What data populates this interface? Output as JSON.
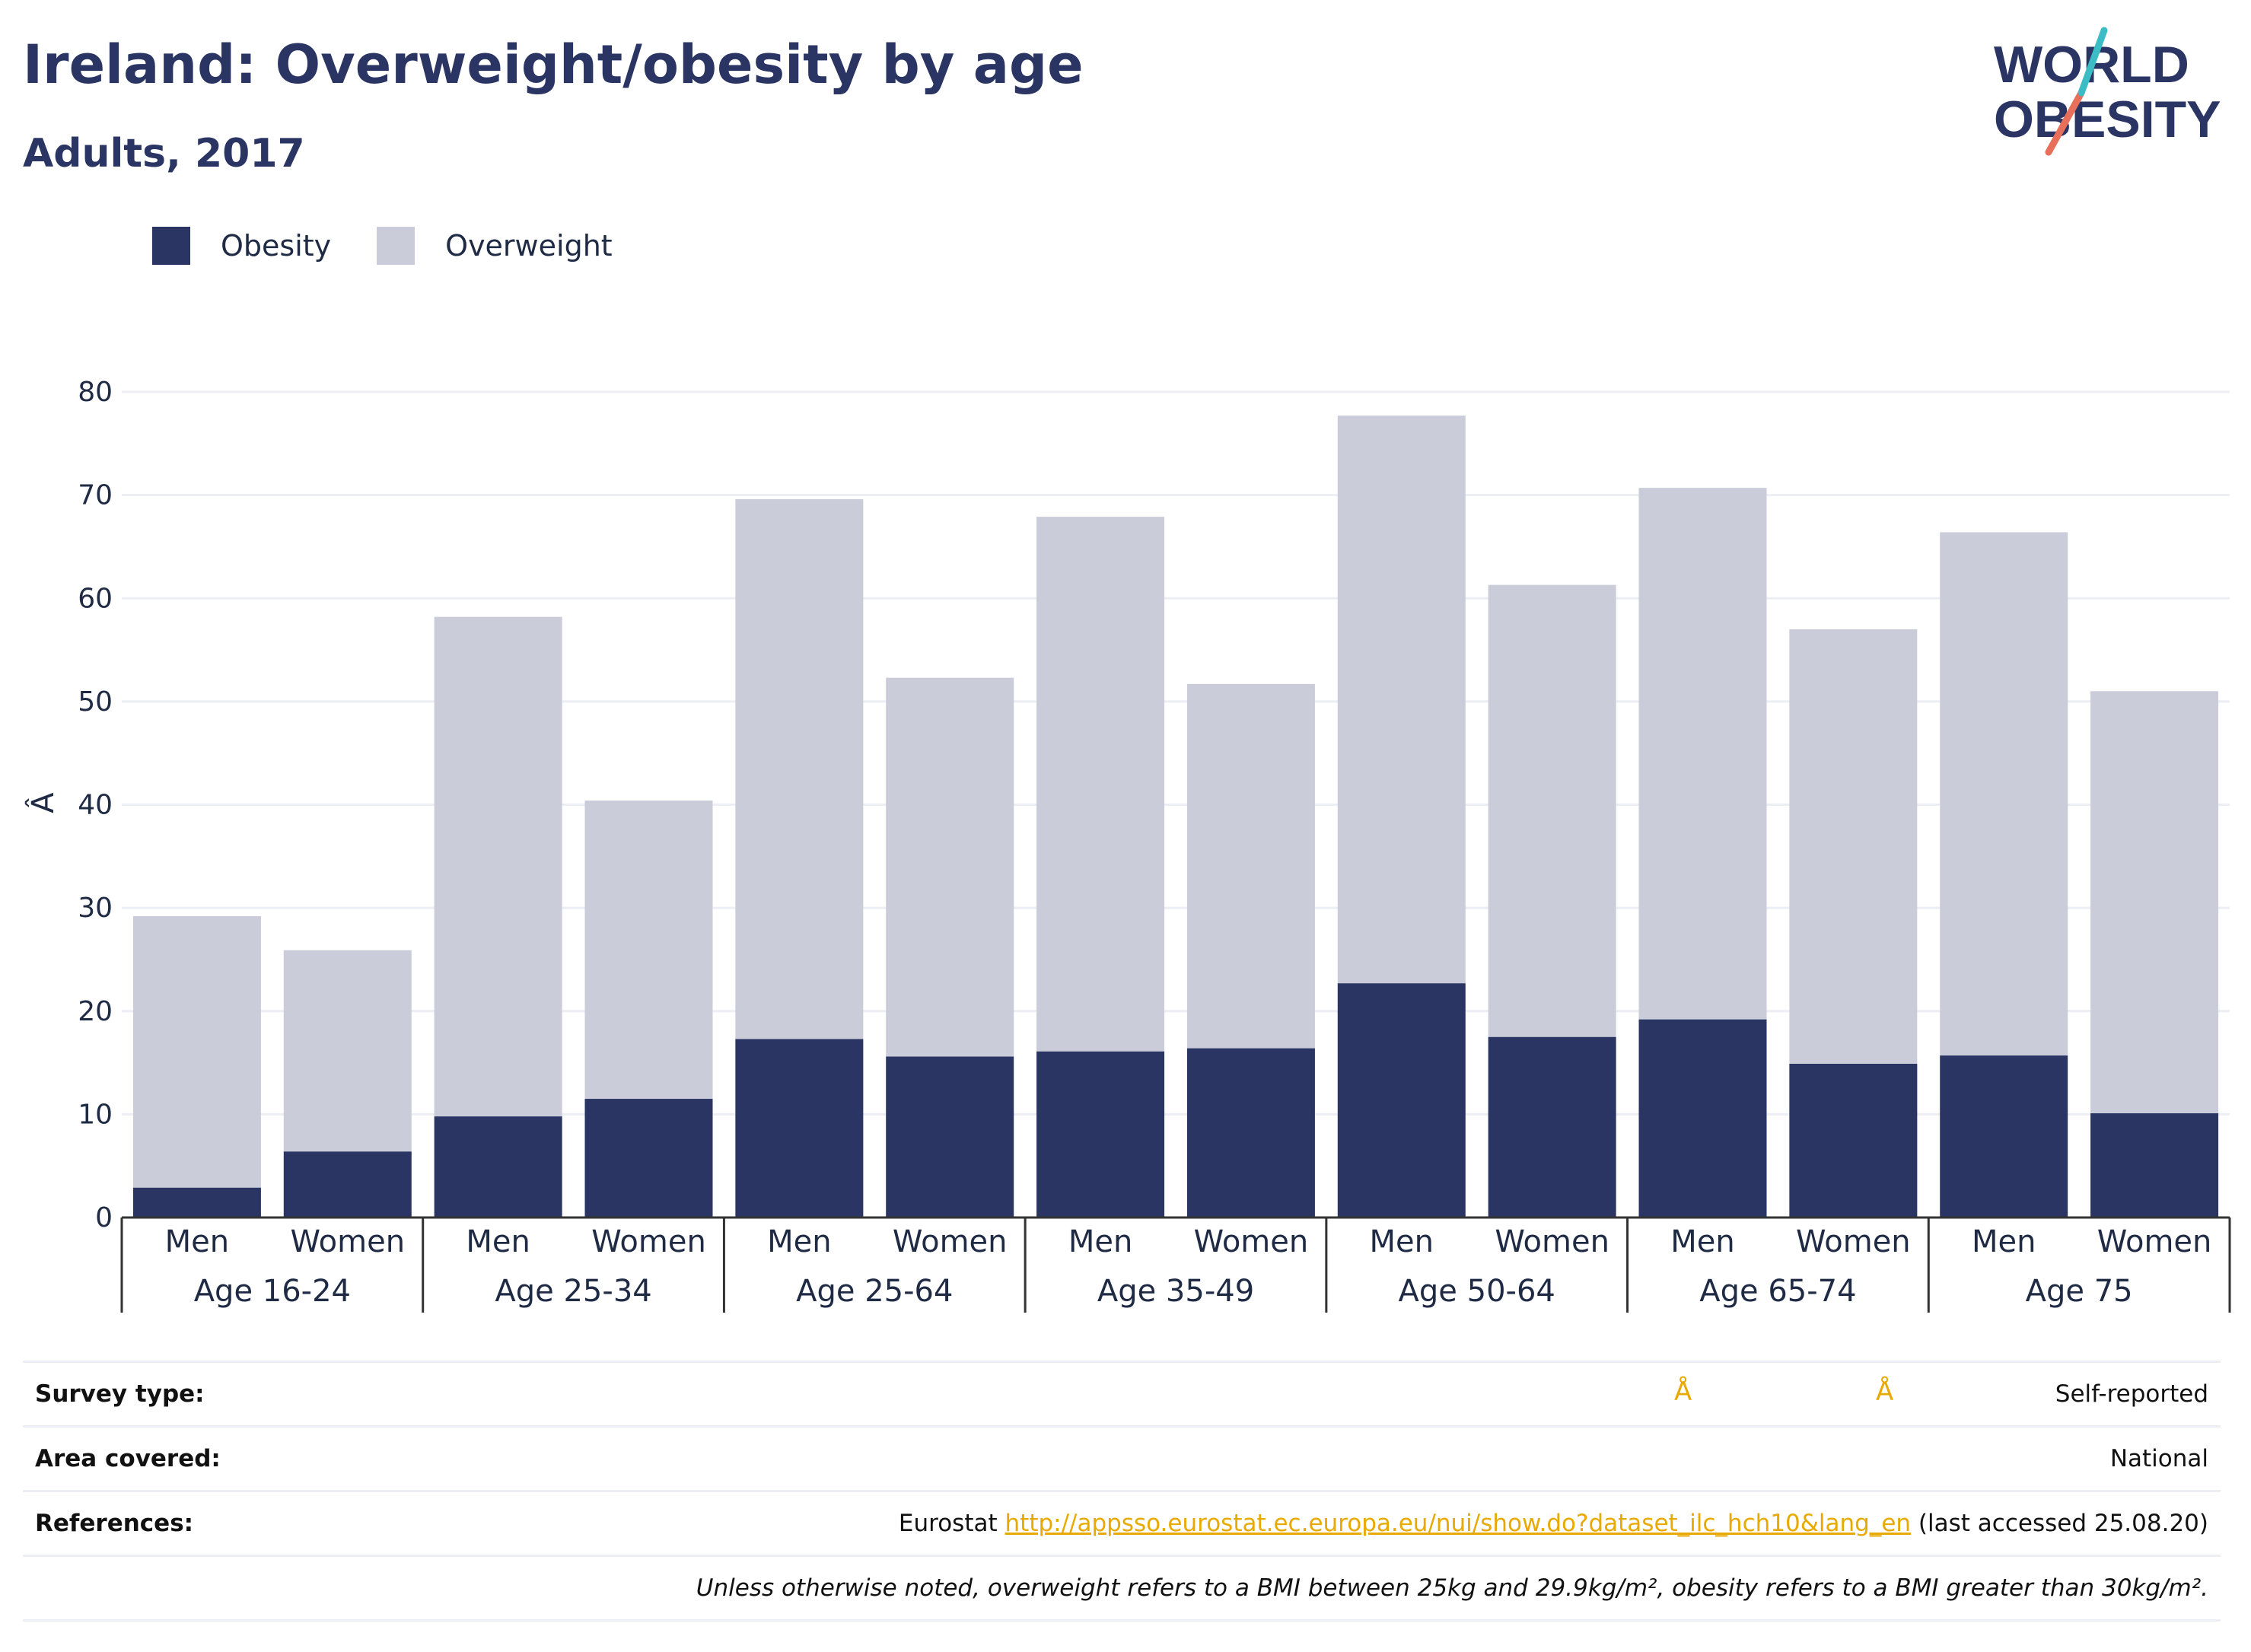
{
  "header": {
    "title": "Ireland: Overweight/obesity by age",
    "subtitle": "Adults, 2017",
    "logo_line1": "WORLD",
    "logo_line2": "OBESITY"
  },
  "legend": [
    {
      "label": "Obesity",
      "color": "#2a3564"
    },
    {
      "label": "Overweight",
      "color": "#cacdd9"
    }
  ],
  "chart_data": {
    "type": "bar",
    "stacked": true,
    "ylabel": "Â",
    "ylim": [
      0,
      80
    ],
    "yticks": [
      0,
      10,
      20,
      30,
      40,
      50,
      60,
      70,
      80
    ],
    "grid": true,
    "legend_position": "top-left",
    "groups": [
      "Age 16-24",
      "Age 25-34",
      "Age 25-64",
      "Age 35-49",
      "Age 50-64",
      "Age 65-74",
      "Age 75"
    ],
    "subcategories": [
      "Men",
      "Women"
    ],
    "series": [
      {
        "name": "Obesity",
        "color": "#2a3564",
        "values": [
          2.9,
          6.4,
          9.8,
          11.5,
          17.3,
          15.6,
          16.1,
          16.4,
          22.7,
          17.5,
          19.2,
          14.9,
          15.7,
          10.1
        ]
      },
      {
        "name": "Overweight",
        "color": "#cacdd9",
        "values": [
          26.3,
          19.5,
          48.4,
          28.9,
          52.3,
          36.7,
          51.8,
          35.3,
          55.0,
          43.8,
          51.5,
          42.1,
          50.7,
          40.9
        ]
      }
    ]
  },
  "footer": {
    "survey_type_label": "Survey type:",
    "survey_type_value": "Self-reported",
    "survey_glyph": "Å",
    "area_label": "Area covered:",
    "area_value": "National",
    "references_label": "References:",
    "references_prefix": "Eurostat",
    "references_link": "http://appsso.eurostat.ec.europa.eu/nui/show.do?dataset_ilc_hch10&lang_en",
    "references_suffix": "(last accessed 25.08.20)",
    "note": "Unless otherwise noted, overweight refers to a BMI between 25kg and 29.9kg/m², obesity refers to a BMI greater than 30kg/m²."
  }
}
